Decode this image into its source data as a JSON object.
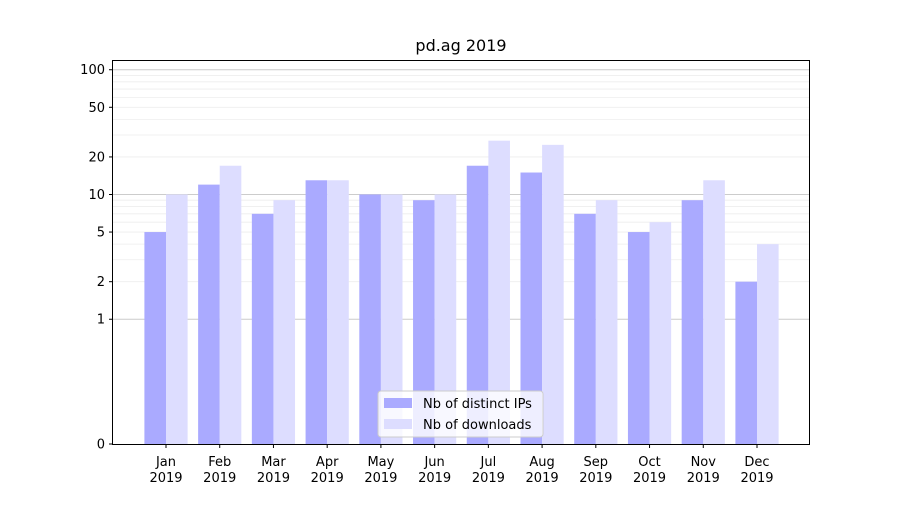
{
  "chart_data": {
    "type": "bar",
    "title": "pd.ag 2019",
    "xlabel": "",
    "ylabel": "",
    "yscale": "symlog",
    "ylim": [
      0,
      100
    ],
    "y_ticks": [
      0,
      1,
      2,
      5,
      10,
      20,
      50,
      100
    ],
    "grid": true,
    "legend_position": "lower-center",
    "categories": [
      [
        "Jan",
        "2019"
      ],
      [
        "Feb",
        "2019"
      ],
      [
        "Mar",
        "2019"
      ],
      [
        "Apr",
        "2019"
      ],
      [
        "May",
        "2019"
      ],
      [
        "Jun",
        "2019"
      ],
      [
        "Jul",
        "2019"
      ],
      [
        "Aug",
        "2019"
      ],
      [
        "Sep",
        "2019"
      ],
      [
        "Oct",
        "2019"
      ],
      [
        "Nov",
        "2019"
      ],
      [
        "Dec",
        "2019"
      ]
    ],
    "series": [
      {
        "name": "Nb of distinct IPs",
        "color": "#aaaaff",
        "values": [
          5,
          12,
          7,
          13,
          10,
          9,
          17,
          15,
          7,
          5,
          9,
          2
        ]
      },
      {
        "name": "Nb of downloads",
        "color": "#ddddff",
        "values": [
          10,
          17,
          9,
          13,
          10,
          10,
          27,
          25,
          9,
          6,
          13,
          4
        ]
      }
    ]
  }
}
